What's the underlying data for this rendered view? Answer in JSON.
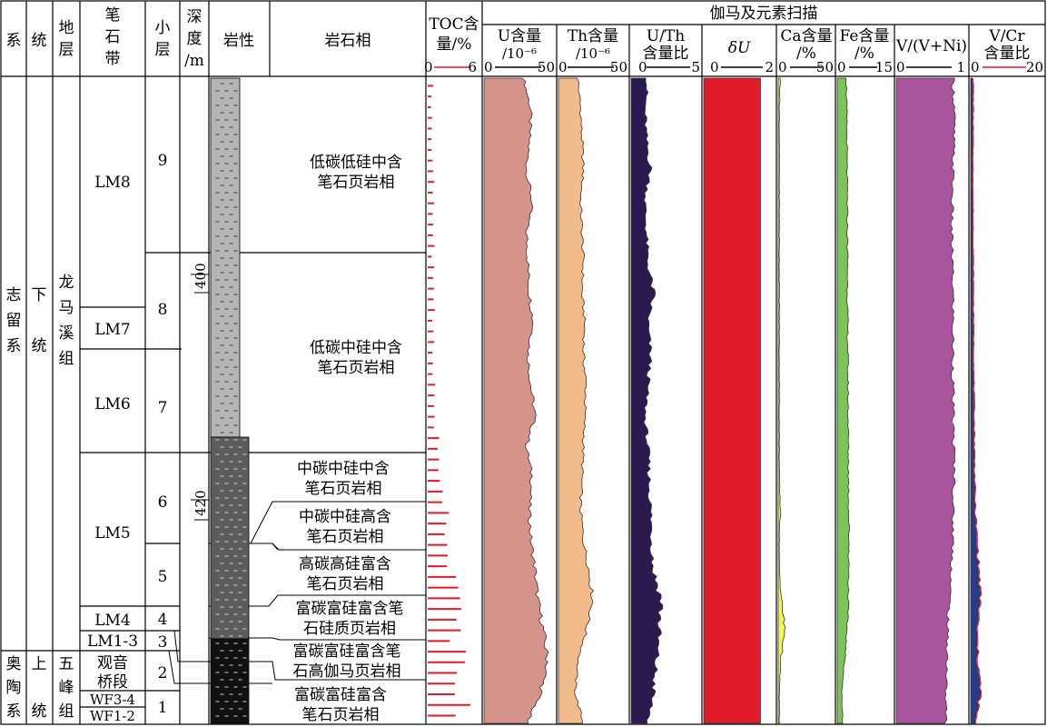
{
  "headers": {
    "xi": "系",
    "tong": "统",
    "diceng": [
      "地",
      "层"
    ],
    "bishidai": [
      "笔",
      "石",
      "带"
    ],
    "xiaoceng": [
      "小",
      "层"
    ],
    "shendu": [
      "深",
      "度",
      "/m"
    ],
    "yanxing": "岩性",
    "yanshixiang": "岩石相",
    "toc": [
      "TOC含",
      "量/%"
    ],
    "gamma_group": "伽马及元素扫描",
    "U": [
      "U含量",
      "/10⁻⁶"
    ],
    "Th": [
      "Th含量",
      "/10⁻⁶"
    ],
    "UTh": [
      "U/Th",
      "含量比"
    ],
    "dU": "δU",
    "Ca": [
      "Ca含量",
      "/%"
    ],
    "Fe": [
      "Fe含量",
      "/%"
    ],
    "VVNi": "V/(V+Ni)",
    "VCr": [
      "V/Cr",
      "含量比"
    ]
  },
  "scales": {
    "toc": [
      "0",
      "6"
    ],
    "U": [
      "0",
      "50"
    ],
    "Th": [
      "0",
      "50"
    ],
    "UTh": [
      "0",
      "5"
    ],
    "dU": [
      "0",
      "2"
    ],
    "Ca": [
      "0",
      "50"
    ],
    "Fe": [
      "0",
      "15"
    ],
    "VVNi": [
      "0",
      "1"
    ],
    "VCr": [
      "0",
      "20"
    ]
  },
  "system": [
    {
      "chars": [
        "志",
        "留",
        "系"
      ]
    },
    {
      "chars": [
        "奥",
        "陶",
        "系"
      ]
    }
  ],
  "series": [
    {
      "chars": [
        "下",
        "统"
      ]
    },
    {
      "chars": [
        "上",
        "统"
      ]
    }
  ],
  "formation": [
    {
      "chars": [
        "龙",
        "马",
        "溪",
        "组"
      ]
    },
    {
      "chars": [
        "五",
        "峰",
        "组"
      ]
    }
  ],
  "zones": [
    "LM8",
    "LM7",
    "LM6",
    "LM5",
    "LM4",
    "LM1-3",
    "观音",
    "桥段",
    "WF3-4",
    "WF1-2"
  ],
  "layers": [
    "9",
    "8",
    "7",
    "6",
    "5",
    "4",
    "3",
    "2",
    "1"
  ],
  "depth_ticks": [
    "400",
    "420"
  ],
  "facies": [
    [
      "低碳低硅中含",
      "笔石页岩相"
    ],
    [
      "低碳中硅中含",
      "笔石页岩相"
    ],
    [
      "中碳中硅中含",
      "笔石页岩相"
    ],
    [
      "中碳中硅高含",
      "笔石页岩相"
    ],
    [
      "高碳高硅富含",
      "笔石页岩相"
    ],
    [
      "富碳富硅富含笔",
      "石硅质页岩相"
    ],
    [
      "富碳富硅富含笔",
      "石高伽马页岩相"
    ],
    [
      "富碳富硅富含",
      "笔石页岩相"
    ]
  ],
  "colors": {
    "U": "#d4938b",
    "Th": "#f2bb8c",
    "UTh": "#2a1a4f",
    "dU": "#e0192b",
    "Ca": "#f3f55a",
    "Fe": "#7dc35a",
    "VVNi": "#a9559e",
    "VCr_fill": "#283a8c",
    "VCr_line": "#e0192b",
    "toc": "#e0192b",
    "lith_light": "#b5b5b5",
    "lith_mid": "#5c5c5c",
    "lith_dark": "#111111"
  },
  "chart_data": {
    "type": "area",
    "x_unit": "depth m (relative, top = shallow)",
    "depth_range": [
      390,
      432
    ],
    "curves": {
      "U": {
        "range": [
          0,
          50
        ],
        "depth": [
          390,
          392,
          394,
          396,
          398,
          400,
          402,
          404,
          406,
          408,
          410,
          412,
          414,
          416,
          418,
          420,
          422,
          424,
          426,
          428,
          430,
          432
        ],
        "values": [
          28,
          33,
          32,
          30,
          34,
          30,
          31,
          32,
          35,
          31,
          33,
          36,
          30,
          34,
          32,
          33,
          36,
          38,
          42,
          45,
          40,
          30
        ]
      },
      "Th": {
        "range": [
          0,
          50
        ],
        "depth": [
          390,
          392,
          394,
          396,
          398,
          400,
          402,
          404,
          406,
          408,
          410,
          412,
          414,
          416,
          418,
          420,
          422,
          424,
          426,
          428,
          430,
          432
        ],
        "values": [
          14,
          16,
          17,
          18,
          16,
          17,
          18,
          17,
          19,
          18,
          20,
          19,
          18,
          17,
          16,
          18,
          22,
          25,
          20,
          14,
          12,
          18
        ]
      },
      "UTh": {
        "range": [
          0,
          5
        ],
        "depth": [
          390,
          392,
          394,
          396,
          398,
          400,
          402,
          404,
          406,
          408,
          410,
          412,
          414,
          416,
          418,
          420,
          422,
          424,
          426,
          428,
          430,
          432
        ],
        "values": [
          1.2,
          1.0,
          1.1,
          1.4,
          1.0,
          1.1,
          1.2,
          1.6,
          1.2,
          1.4,
          1.2,
          1.0,
          1.2,
          1.3,
          1.4,
          1.5,
          1.6,
          2.2,
          2.0,
          1.8,
          1.6,
          1.2
        ]
      },
      "dU": {
        "range": [
          0,
          2
        ],
        "depth": [
          390,
          432
        ],
        "values": [
          1.6,
          1.6
        ]
      },
      "Ca": {
        "range": [
          0,
          50
        ],
        "depth": [
          390,
          392,
          396,
          400,
          404,
          408,
          412,
          416,
          418,
          420,
          422,
          424,
          426,
          428,
          430,
          432
        ],
        "values": [
          2,
          1,
          1,
          1,
          1,
          1,
          1,
          1,
          2,
          1,
          1,
          3,
          6,
          2,
          1,
          1
        ]
      },
      "Fe": {
        "range": [
          0,
          15
        ],
        "depth": [
          390,
          394,
          398,
          402,
          406,
          410,
          414,
          418,
          420,
          424,
          426,
          428,
          430,
          432
        ],
        "values": [
          2.5,
          2.6,
          2.7,
          2.8,
          2.8,
          2.9,
          3.0,
          3.1,
          3.2,
          3.0,
          2.6,
          2.0,
          1.2,
          1.5
        ]
      },
      "VVNi": {
        "range": [
          0,
          1
        ],
        "depth": [
          390,
          392,
          396,
          400,
          404,
          408,
          412,
          416,
          418,
          420,
          422,
          424,
          426,
          428,
          430,
          432
        ],
        "values": [
          0.8,
          0.82,
          0.8,
          0.78,
          0.8,
          0.8,
          0.8,
          0.82,
          0.8,
          0.8,
          0.78,
          0.75,
          0.72,
          0.72,
          0.7,
          0.7
        ]
      },
      "VCr": {
        "range": [
          0,
          20
        ],
        "depth": [
          390,
          396,
          402,
          408,
          414,
          418,
          420,
          422,
          424,
          426,
          428,
          430,
          432
        ],
        "values": [
          0.5,
          0.4,
          0.5,
          0.6,
          0.8,
          1.0,
          1.5,
          2.0,
          2.4,
          1.5,
          1.8,
          2.5,
          1.0
        ]
      },
      "TOC": {
        "range": [
          0,
          6
        ],
        "depth": [
          392,
          396,
          400,
          404,
          408,
          412,
          416,
          418,
          420,
          422,
          424,
          426,
          428,
          430
        ],
        "values": [
          0.5,
          0.6,
          0.6,
          0.7,
          0.6,
          0.8,
          1.5,
          2.0,
          2.5,
          3.0,
          3.2,
          3.5,
          3.8,
          4.0
        ]
      }
    }
  }
}
